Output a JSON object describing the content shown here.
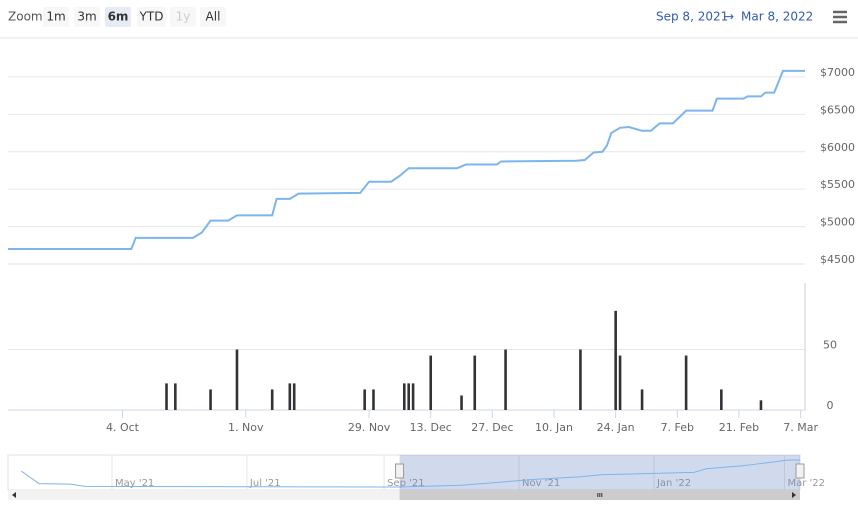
{
  "toolbar": {
    "zoom_label": "Zoom",
    "buttons": [
      "1m",
      "3m",
      "6m",
      "YTD",
      "1y",
      "All"
    ],
    "selected_index": 2,
    "disabled_index": 4
  },
  "range": {
    "from": "Sep 8, 2021",
    "separator": "→",
    "to": "Mar 8, 2022"
  },
  "chart_data": [
    {
      "type": "line",
      "color": "#7cb5ec",
      "x": [
        "2021-09-08",
        "2021-10-06",
        "2021-10-07",
        "2021-10-20",
        "2021-10-22",
        "2021-10-24",
        "2021-10-28",
        "2021-10-30",
        "2021-11-07",
        "2021-11-08",
        "2021-11-11",
        "2021-11-13",
        "2021-11-27",
        "2021-11-29",
        "2021-12-04",
        "2021-12-06",
        "2021-12-08",
        "2021-12-19",
        "2021-12-21",
        "2021-12-28",
        "2021-12-29",
        "2022-01-15",
        "2022-01-17",
        "2022-01-19",
        "2022-01-21",
        "2022-01-22",
        "2022-01-23",
        "2022-01-25",
        "2022-01-27",
        "2022-01-30",
        "2022-02-01",
        "2022-02-03",
        "2022-02-06",
        "2022-02-09",
        "2022-02-15",
        "2022-02-16",
        "2022-02-22",
        "2022-02-23",
        "2022-02-26",
        "2022-02-27",
        "2022-03-01",
        "2022-03-03",
        "2022-03-08"
      ],
      "values": [
        4700,
        4700,
        4850,
        4850,
        4920,
        5080,
        5080,
        5150,
        5150,
        5370,
        5370,
        5440,
        5450,
        5600,
        5600,
        5680,
        5780,
        5780,
        5830,
        5830,
        5870,
        5880,
        5890,
        5990,
        6000,
        6080,
        6250,
        6320,
        6330,
        6280,
        6280,
        6380,
        6380,
        6550,
        6550,
        6710,
        6710,
        6740,
        6740,
        6790,
        6790,
        7080,
        7080
      ],
      "xlim": [
        "2021-09-08",
        "2022-03-08"
      ],
      "ylim": [
        4420,
        7520
      ],
      "yticks": [
        {
          "value": 4500,
          "label": "$4500"
        },
        {
          "value": 5000,
          "label": "$5000"
        },
        {
          "value": 5500,
          "label": "$5500"
        },
        {
          "value": 6000,
          "label": "$6000"
        },
        {
          "value": 6500,
          "label": "$6500"
        },
        {
          "value": 7000,
          "label": "$7000"
        }
      ],
      "grid": true
    },
    {
      "type": "bar",
      "color": "#333333",
      "x": [
        "2021-10-14",
        "2021-10-16",
        "2021-10-24",
        "2021-10-30",
        "2021-11-07",
        "2021-11-11",
        "2021-11-12",
        "2021-11-28",
        "2021-11-30",
        "2021-12-07",
        "2021-12-08",
        "2021-12-09",
        "2021-12-13",
        "2021-12-20",
        "2021-12-23",
        "2021-12-30",
        "2022-01-16",
        "2022-01-24",
        "2022-01-25",
        "2022-01-30",
        "2022-02-09",
        "2022-02-17",
        "2022-02-26"
      ],
      "values": [
        22,
        22,
        17,
        50,
        17,
        22,
        22,
        17,
        17,
        22,
        22,
        22,
        45,
        12,
        45,
        50,
        50,
        82,
        45,
        17,
        45,
        17,
        8
      ],
      "xlim": [
        "2021-09-08",
        "2022-03-08"
      ],
      "ylim": [
        0,
        105
      ],
      "xticks": [
        {
          "value": "2021-10-04",
          "label": "4. Oct"
        },
        {
          "value": "2021-11-01",
          "label": "1. Nov"
        },
        {
          "value": "2021-11-29",
          "label": "29. Nov"
        },
        {
          "value": "2021-12-13",
          "label": "13. Dec"
        },
        {
          "value": "2021-12-27",
          "label": "27. Dec"
        },
        {
          "value": "2022-01-10",
          "label": "10. Jan"
        },
        {
          "value": "2022-01-24",
          "label": "24. Jan"
        },
        {
          "value": "2022-02-07",
          "label": "7. Feb"
        },
        {
          "value": "2022-02-21",
          "label": "21. Feb"
        },
        {
          "value": "2022-03-07",
          "label": "7. Mar"
        }
      ],
      "yticks": [
        0,
        50
      ],
      "grid": true
    },
    {
      "type": "area",
      "color": "#7cb5ec",
      "x": [
        "2021-03-21",
        "2021-03-29",
        "2021-04-12",
        "2021-04-19",
        "2021-09-08",
        "2021-10-06",
        "2021-11-08",
        "2021-11-29",
        "2021-12-08",
        "2022-01-19",
        "2022-01-25",
        "2022-02-09",
        "2022-02-16",
        "2022-03-03",
        "2022-03-08"
      ],
      "values": [
        6100,
        5000,
        4950,
        4750,
        4700,
        4850,
        5370,
        5600,
        5780,
        5990,
        6320,
        6550,
        6710,
        7080,
        7080
      ],
      "xlim": [
        "2021-03-15",
        "2022-03-08"
      ],
      "ylim": [
        4435,
        7520
      ],
      "xticks": [
        {
          "value": "2021-05-01",
          "label": "May '21"
        },
        {
          "value": "2021-07-01",
          "label": "Jul '21"
        },
        {
          "value": "2021-09-01",
          "label": "Sep '21"
        },
        {
          "value": "2021-11-01",
          "label": "Nov '21"
        },
        {
          "value": "2022-01-01",
          "label": "Jan '22"
        },
        {
          "value": "2022-03-01",
          "label": "Mar '22"
        }
      ]
    }
  ]
}
